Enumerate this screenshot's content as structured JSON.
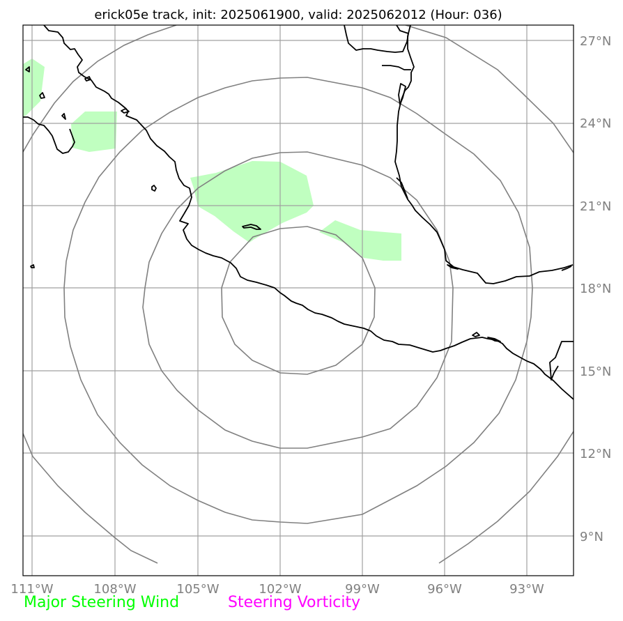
{
  "title": "erick05e track, init: 2025061900, valid: 2025062012 (Hour: 036)",
  "map": {
    "lon_labels": [
      "111°W",
      "108°W",
      "105°W",
      "102°W",
      "99°W",
      "96°W",
      "93°W"
    ],
    "lat_labels": [
      "27°N",
      "24°N",
      "21°N",
      "18°N",
      "15°N",
      "12°N",
      "9°N"
    ],
    "range_rings": 4,
    "colors": {
      "grid": "#a0a0a0",
      "rings": "#808080",
      "coastline": "#000000",
      "steering_wind_fill": "#c0ffc0"
    }
  },
  "legend": {
    "wind": {
      "label": "Major Steering Wind",
      "color": "#00ff00"
    },
    "vorticity": {
      "label": "Steering Vorticity",
      "color": "#ff00ff"
    }
  }
}
